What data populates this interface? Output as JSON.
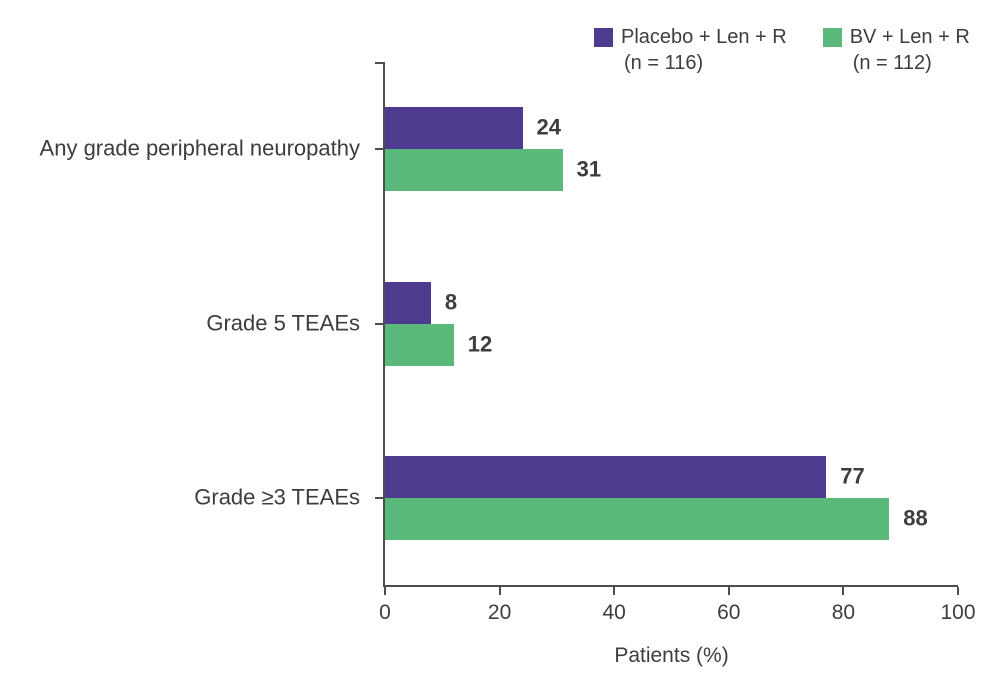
{
  "chart_data": {
    "type": "bar",
    "orientation": "horizontal",
    "categories": [
      "Any grade peripheral neuropathy",
      "Grade 5 TEAEs",
      "Grade ≥3 TEAEs"
    ],
    "series": [
      {
        "name": "Placebo + Len + R",
        "n_label": "(n = 116)",
        "color": "#4e3b8f",
        "values": [
          24,
          8,
          77
        ]
      },
      {
        "name": "BV + Len + R",
        "n_label": "(n = 112)",
        "color": "#5cb97c",
        "values": [
          31,
          12,
          88
        ]
      }
    ],
    "xlabel": "Patients (%)",
    "xlim": [
      0,
      100
    ],
    "xticks": [
      0,
      20,
      40,
      60,
      80,
      100
    ],
    "legend_position": "top-right",
    "grid": false,
    "value_labels_shown": true
  },
  "colors": {
    "axis": "#4d4d4d",
    "text": "#3d3d3d",
    "background": "#ffffff"
  }
}
